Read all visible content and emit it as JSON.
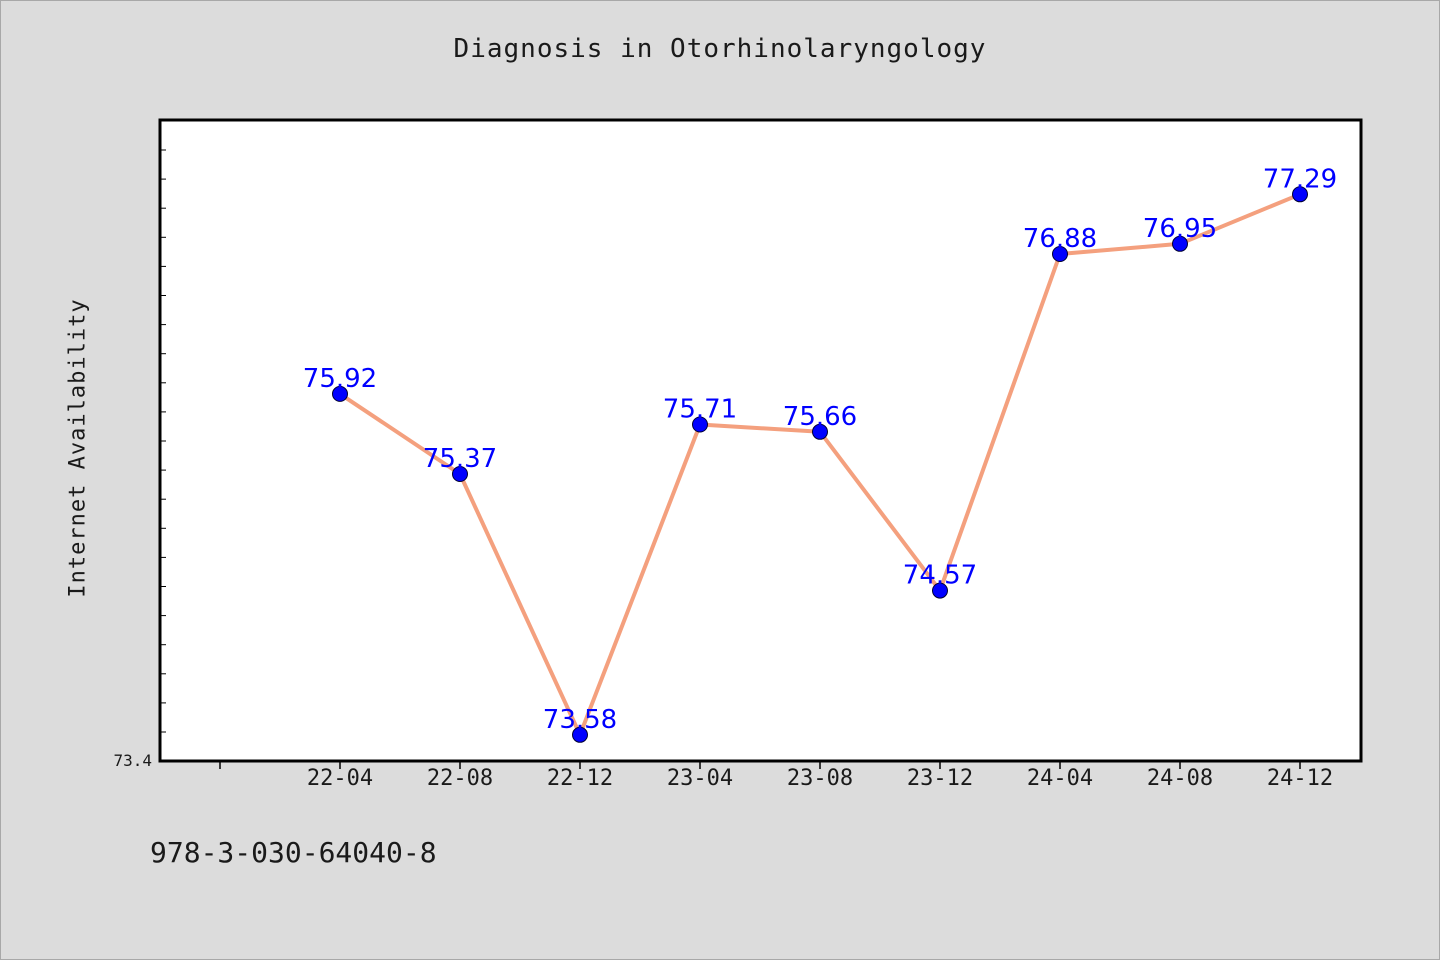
{
  "chart_data": {
    "type": "line",
    "title": "Diagnosis in Otorhinolaryngology",
    "xlabel": "",
    "ylabel": "Internet Availability",
    "categories": [
      "22-04",
      "22-08",
      "22-12",
      "23-04",
      "23-08",
      "23-12",
      "24-04",
      "24-08",
      "24-12"
    ],
    "series": [
      {
        "values": [
          75.92,
          75.37,
          73.58,
          75.71,
          75.66,
          74.57,
          76.88,
          76.95,
          77.29
        ]
      }
    ],
    "data_labels": [
      "75.92",
      "75.37",
      "73.58",
      "75.71",
      "75.66",
      "74.57",
      "76.88",
      "76.95",
      "77.29"
    ],
    "ylim": [
      73.4,
      77.8
    ],
    "y_min_label": "73.4",
    "grid": false,
    "legend": "none",
    "colors": {
      "line": "#f4a07e",
      "marker": "#0000ff",
      "marker_edge": "#000033",
      "data_label": "#0000ff",
      "plot_bg": "#ffffff",
      "page_bg": "#dcdcdc"
    }
  },
  "footer": {
    "code": "978-3-030-64040-8"
  }
}
